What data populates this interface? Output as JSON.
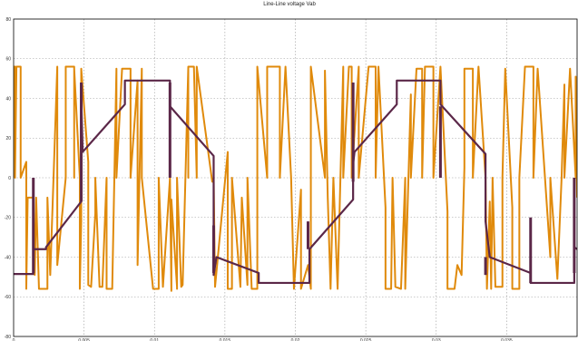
{
  "chart_data": {
    "type": "line",
    "title": "Line-Line voltage Vab",
    "xlabel": "",
    "ylabel": "",
    "xlim": [
      0,
      0.04
    ],
    "ylim": [
      -80,
      80
    ],
    "xticks": [
      0,
      0.005,
      0.01,
      0.015,
      0.02,
      0.025,
      0.03,
      0.035
    ],
    "xtick_labels": [
      "0",
      "0.005",
      "0.01",
      "0.015",
      "0.02",
      "0.025",
      "0.03",
      "0.035"
    ],
    "yticks": [
      -80,
      -60,
      -40,
      -20,
      0,
      20,
      40,
      60,
      80
    ],
    "grid": true,
    "colors": {
      "reference": "#5b2748",
      "pwm": "#e08a0b"
    },
    "series": [
      {
        "name": "",
        "color": "#5b2748",
        "points": [
          [
            0,
            -48.5
          ],
          [
            0.0014,
            -48.5
          ],
          [
            0.0014,
            -36
          ],
          [
            0.0023,
            -36
          ],
          [
            0.0023,
            -35
          ],
          [
            0.0048,
            -12
          ],
          [
            0.0048,
            40
          ],
          [
            0.0049,
            13
          ],
          [
            0.0079,
            37
          ],
          [
            0.0079,
            49
          ],
          [
            0.0111,
            49
          ],
          [
            0.0111,
            48
          ],
          [
            0.0111,
            36
          ],
          [
            0.0142,
            11
          ],
          [
            0.0142,
            -49
          ],
          [
            0.0144,
            -40
          ],
          [
            0.0174,
            -48
          ],
          [
            0.0174,
            -53
          ],
          [
            0.021,
            -53
          ],
          [
            0.021,
            -36
          ],
          [
            0.0241,
            -11
          ],
          [
            0.0241,
            7
          ],
          [
            0.0242,
            13
          ],
          [
            0.0272,
            37
          ],
          [
            0.0272,
            49
          ],
          [
            0.0303,
            49
          ],
          [
            0.0303,
            37
          ],
          [
            0.0335,
            12
          ],
          [
            0.0335,
            -22
          ],
          [
            0.0338,
            -40
          ],
          [
            0.0367,
            -48
          ],
          [
            0.0367,
            -53
          ],
          [
            0.0398,
            -53
          ],
          [
            0.0398,
            -35
          ],
          [
            0.04,
            -36
          ]
        ],
        "segments": [
          {
            "x": 0.0014,
            "y": [
              -48,
              0
            ]
          },
          {
            "x": 0.0048,
            "y": [
              -12,
              48
            ]
          },
          {
            "x": 0.0111,
            "y": [
              0,
              48
            ]
          },
          {
            "x": 0.0142,
            "y": [
              -48,
              -24
            ]
          },
          {
            "x": 0.0209,
            "y": [
              -36,
              -22
            ]
          },
          {
            "x": 0.0241,
            "y": [
              -2,
              48
            ]
          },
          {
            "x": 0.0303,
            "y": [
              0,
              36
            ]
          },
          {
            "x": 0.0335,
            "y": [
              -49,
              -40
            ]
          },
          {
            "x": 0.0367,
            "y": [
              -53,
              -20
            ]
          },
          {
            "x": 0.0398,
            "y": [
              -48,
              0
            ]
          }
        ]
      },
      {
        "name": "",
        "color": "#e08a0b",
        "points": [
          [
            0,
            0
          ],
          [
            0,
            56
          ],
          [
            0.0001,
            56
          ],
          [
            0.0001,
            0
          ],
          [
            0.0002,
            56
          ],
          [
            0.0005,
            56
          ],
          [
            0.0005,
            0
          ],
          [
            0.0009,
            8
          ],
          [
            0.0009,
            -56
          ],
          [
            0.001,
            -10
          ],
          [
            0.0014,
            -10
          ],
          [
            0.0015,
            -49
          ],
          [
            0.0016,
            -10
          ],
          [
            0.0018,
            -56
          ],
          [
            0.0024,
            -56
          ],
          [
            0.0024,
            -10
          ],
          [
            0.0026,
            -49
          ],
          [
            0.0031,
            56
          ],
          [
            0.0031,
            -44
          ],
          [
            0.0037,
            0
          ],
          [
            0.0037,
            56
          ],
          [
            0.0043,
            56
          ],
          [
            0.0043,
            0
          ],
          [
            0.0043,
            55
          ],
          [
            0.0047,
            0
          ],
          [
            0.0047,
            -56
          ],
          [
            0.0048,
            -22
          ],
          [
            0.0048,
            55
          ],
          [
            0.0053,
            8
          ],
          [
            0.0053,
            -54
          ],
          [
            0.0055,
            -55
          ],
          [
            0.0058,
            -18
          ],
          [
            0.0058,
            0
          ],
          [
            0.0061,
            -55
          ],
          [
            0.0063,
            -55
          ],
          [
            0.0066,
            0
          ],
          [
            0.0066,
            -56
          ],
          [
            0.007,
            -56
          ],
          [
            0.0073,
            55
          ],
          [
            0.0073,
            0
          ],
          [
            0.0077,
            55
          ],
          [
            0.0083,
            55
          ],
          [
            0.0083,
            0
          ],
          [
            0.0088,
            49
          ],
          [
            0.0088,
            -44
          ],
          [
            0.0091,
            55
          ],
          [
            0.0091,
            0
          ],
          [
            0.0099,
            -56
          ],
          [
            0.0103,
            -56
          ],
          [
            0.0103,
            0
          ],
          [
            0.0106,
            -55
          ],
          [
            0.0111,
            0
          ],
          [
            0.0112,
            -57
          ],
          [
            0.0112,
            -11
          ],
          [
            0.0116,
            -55
          ],
          [
            0.0116,
            -56
          ],
          [
            0.0116,
            0
          ],
          [
            0.0119,
            -55
          ],
          [
            0.012,
            -54
          ],
          [
            0.0124,
            56
          ],
          [
            0.0124,
            0
          ],
          [
            0.0124,
            56
          ],
          [
            0.0128,
            56
          ],
          [
            0.013,
            0
          ],
          [
            0.013,
            56
          ],
          [
            0.0141,
            -2
          ],
          [
            0.0142,
            0
          ],
          [
            0.0143,
            -55
          ],
          [
            0.0152,
            13
          ],
          [
            0.0152,
            -56
          ],
          [
            0.0155,
            -56
          ],
          [
            0.0155,
            0
          ],
          [
            0.0161,
            -55
          ],
          [
            0.0162,
            -10
          ],
          [
            0.0166,
            -54
          ],
          [
            0.0166,
            0
          ],
          [
            0.0169,
            -56
          ],
          [
            0.0173,
            -56
          ],
          [
            0.0173,
            56
          ],
          [
            0.018,
            0
          ],
          [
            0.018,
            56
          ],
          [
            0.0189,
            56
          ],
          [
            0.0189,
            0
          ],
          [
            0.0193,
            56
          ],
          [
            0.0197,
            0
          ],
          [
            0.0199,
            -56
          ],
          [
            0.0204,
            -6
          ],
          [
            0.0204,
            -56
          ],
          [
            0.0209,
            -44
          ],
          [
            0.0211,
            -56
          ],
          [
            0.0211,
            56
          ],
          [
            0.0221,
            0
          ],
          [
            0.0221,
            54
          ],
          [
            0.0223,
            -10
          ],
          [
            0.0225,
            -56
          ],
          [
            0.0227,
            0
          ],
          [
            0.023,
            -56
          ],
          [
            0.0234,
            56
          ],
          [
            0.0234,
            0
          ],
          [
            0.0238,
            56
          ],
          [
            0.024,
            56
          ],
          [
            0.024,
            0
          ],
          [
            0.0245,
            56
          ],
          [
            0.0245,
            0
          ],
          [
            0.0252,
            56
          ],
          [
            0.0257,
            56
          ],
          [
            0.0257,
            0
          ],
          [
            0.0259,
            56
          ],
          [
            0.0264,
            -15
          ],
          [
            0.0264,
            -56
          ],
          [
            0.0268,
            -56
          ],
          [
            0.0269,
            0
          ],
          [
            0.0271,
            -55
          ],
          [
            0.0275,
            -56
          ],
          [
            0.0278,
            0
          ],
          [
            0.0278,
            -56
          ],
          [
            0.0282,
            42
          ],
          [
            0.0282,
            0
          ],
          [
            0.0286,
            55
          ],
          [
            0.029,
            55
          ],
          [
            0.029,
            0
          ],
          [
            0.0292,
            56
          ],
          [
            0.0298,
            56
          ],
          [
            0.0298,
            0
          ],
          [
            0.0303,
            56
          ],
          [
            0.0308,
            -17
          ],
          [
            0.0308,
            -56
          ],
          [
            0.0313,
            -56
          ],
          [
            0.0315,
            -44
          ],
          [
            0.0318,
            -49
          ],
          [
            0.032,
            5
          ],
          [
            0.032,
            55
          ],
          [
            0.0326,
            55
          ],
          [
            0.0326,
            0
          ],
          [
            0.033,
            56
          ],
          [
            0.0335,
            0
          ],
          [
            0.0336,
            -56
          ],
          [
            0.0338,
            -12
          ],
          [
            0.0339,
            -56
          ],
          [
            0.034,
            0
          ],
          [
            0.0342,
            -55
          ],
          [
            0.0347,
            -55
          ],
          [
            0.0347,
            0
          ],
          [
            0.0349,
            55
          ],
          [
            0.0354,
            -15
          ],
          [
            0.0354,
            -56
          ],
          [
            0.0359,
            -56
          ],
          [
            0.0359,
            0
          ],
          [
            0.0363,
            56
          ],
          [
            0.0369,
            56
          ],
          [
            0.0369,
            0
          ],
          [
            0.0372,
            55
          ],
          [
            0.0381,
            -40
          ],
          [
            0.0381,
            0
          ],
          [
            0.0386,
            -51
          ],
          [
            0.0389,
            0
          ],
          [
            0.0391,
            47
          ],
          [
            0.0391,
            0
          ],
          [
            0.0395,
            55
          ],
          [
            0.0399,
            0
          ],
          [
            0.0399,
            51
          ],
          [
            0.04,
            -10
          ]
        ]
      }
    ]
  }
}
